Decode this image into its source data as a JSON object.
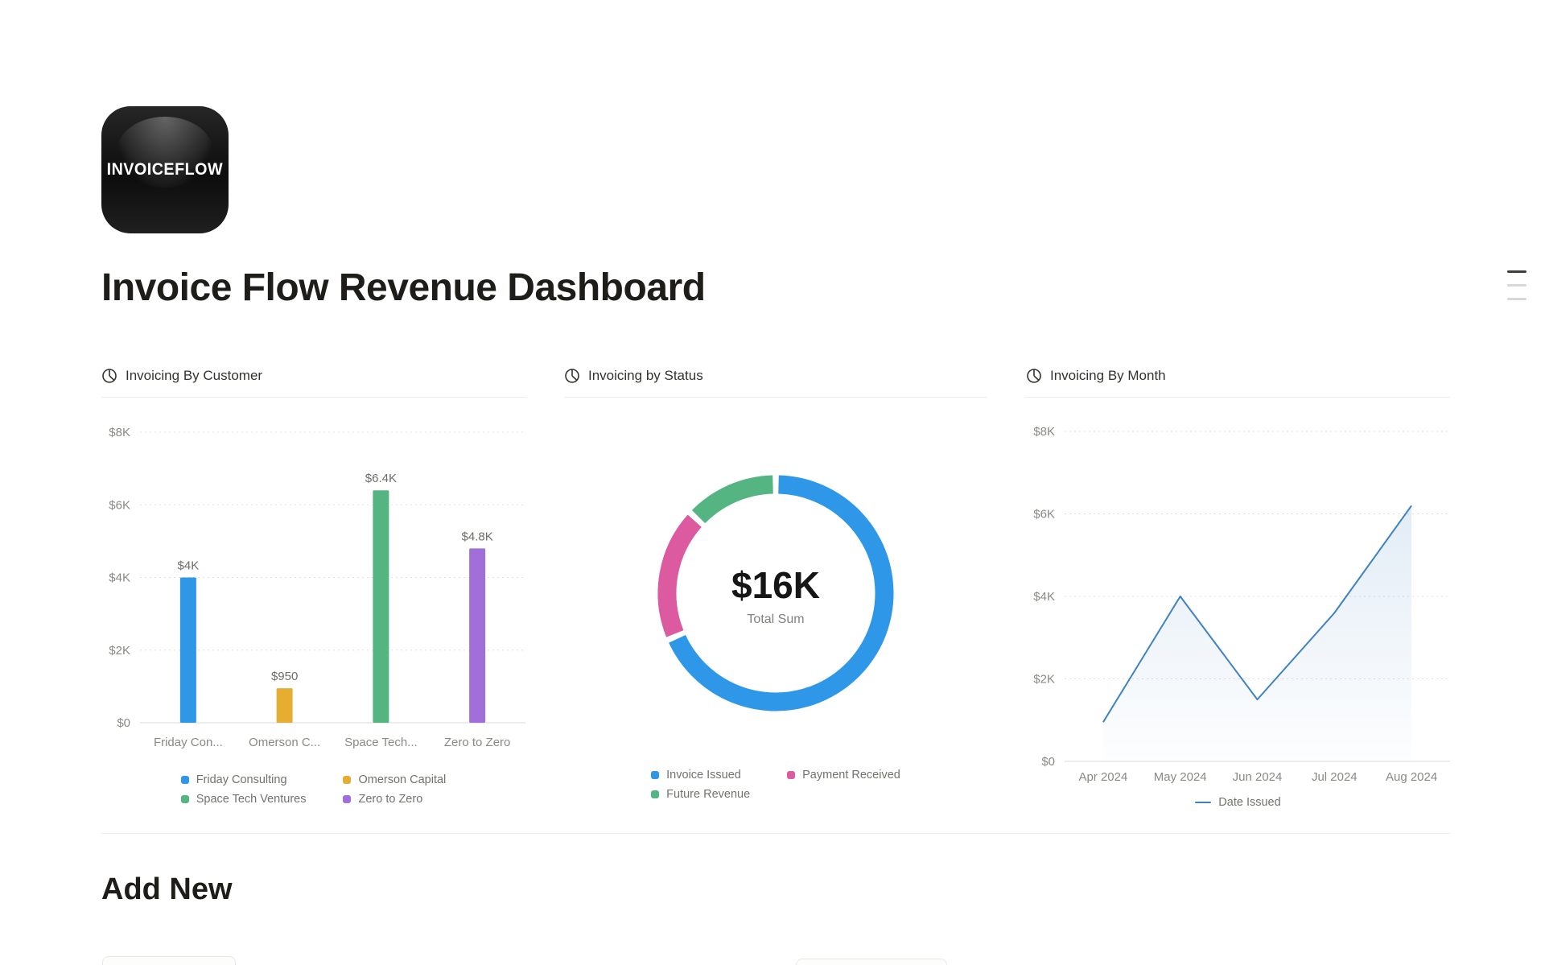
{
  "page": {
    "icon_text": "INVOICEFLOW",
    "title": "Invoice Flow Revenue Dashboard",
    "sections": {
      "add_new": "Add New"
    }
  },
  "chart_data": [
    {
      "type": "bar",
      "title": "Invoicing By Customer",
      "categories": [
        "Friday Consulting",
        "Omerson Capital",
        "Space Tech Ventures",
        "Zero to Zero"
      ],
      "category_tick_labels": [
        "Friday Con...",
        "Omerson C...",
        "Space Tech...",
        "Zero to Zero"
      ],
      "values": [
        4000,
        950,
        6400,
        4800
      ],
      "value_labels": [
        "$4K",
        "$950",
        "$6.4K",
        "$4.8K"
      ],
      "colors": [
        "#2E97E8",
        "#E5AE33",
        "#54B583",
        "#A16FD8"
      ],
      "ylim": [
        0,
        8000
      ],
      "ytick_labels": [
        "$0",
        "$2K",
        "$4K",
        "$6K",
        "$8K"
      ],
      "grid": true,
      "legend_position": "bottom",
      "legend": [
        {
          "label": "Friday Consulting",
          "color": "#2E97E8"
        },
        {
          "label": "Omerson Capital",
          "color": "#E5AE33"
        },
        {
          "label": "Space Tech Ventures",
          "color": "#54B583"
        },
        {
          "label": "Zero to Zero",
          "color": "#A16FD8"
        }
      ]
    },
    {
      "type": "pie",
      "title": "Invoicing by Status",
      "center_value": "$16K",
      "center_label": "Total Sum",
      "segments": [
        {
          "label": "Invoice Issued",
          "color": "#2E97E8",
          "fraction": 0.685
        },
        {
          "label": "Payment Received",
          "color": "#DC5AA0",
          "fraction": 0.185
        },
        {
          "label": "Future Revenue",
          "color": "#54B583",
          "fraction": 0.13
        }
      ],
      "legend_position": "bottom",
      "legend": [
        {
          "label": "Invoice Issued",
          "color": "#2E97E8"
        },
        {
          "label": "Payment Received",
          "color": "#DC5AA0"
        },
        {
          "label": "Future Revenue",
          "color": "#54B583"
        }
      ]
    },
    {
      "type": "line",
      "title": "Invoicing By Month",
      "x": [
        "Apr 2024",
        "May 2024",
        "Jun 2024",
        "Jul 2024",
        "Aug 2024"
      ],
      "series": [
        {
          "name": "Date Issued",
          "values": [
            950,
            4000,
            1500,
            3600,
            6200
          ],
          "color": "#3F82C2"
        }
      ],
      "ylim": [
        0,
        8000
      ],
      "ytick_labels": [
        "$0",
        "$2K",
        "$4K",
        "$6K",
        "$8K"
      ],
      "grid": true,
      "area_fill": true,
      "legend_position": "bottom",
      "legend": [
        {
          "label": "Date Issued",
          "color": "#3F82C2",
          "marker": "line"
        }
      ]
    }
  ]
}
